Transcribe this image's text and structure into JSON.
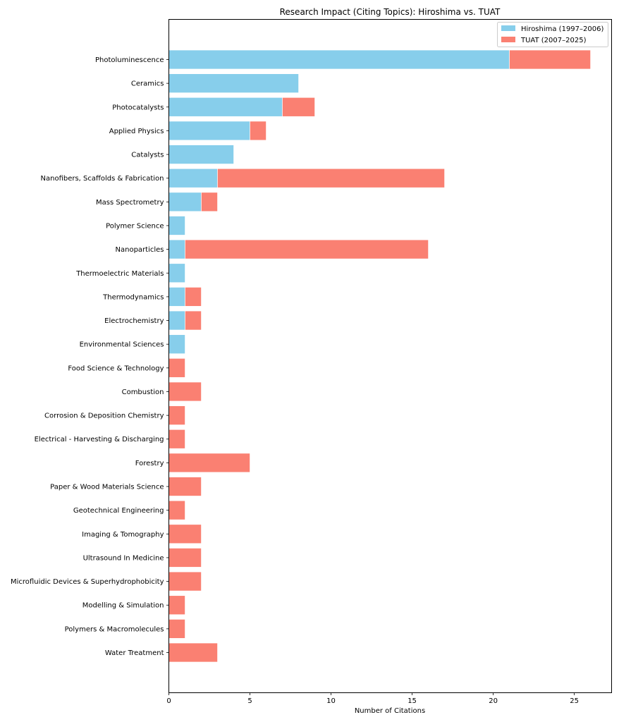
{
  "chart_data": {
    "type": "bar",
    "orientation": "horizontal",
    "stacked": true,
    "title": "Research Impact (Citing Topics): Hiroshima vs. TUAT",
    "xlabel": "Number of Citations",
    "ylabel": "",
    "xlim": [
      0,
      27.3
    ],
    "xticks": [
      0,
      5,
      10,
      15,
      20,
      25
    ],
    "grid": false,
    "legend_position": "top-right",
    "categories": [
      "Photoluminescence",
      "Ceramics",
      "Photocatalysts",
      "Applied Physics",
      "Catalysts",
      "Nanofibers, Scaffolds & Fabrication",
      "Mass Spectrometry",
      "Polymer Science",
      "Nanoparticles",
      "Thermoelectric Materials",
      "Thermodynamics",
      "Electrochemistry",
      "Environmental Sciences",
      "Food Science & Technology",
      "Combustion",
      "Corrosion & Deposition Chemistry",
      "Electrical - Harvesting & Discharging",
      "Forestry",
      "Paper & Wood Materials Science",
      "Geotechnical Engineering",
      "Imaging & Tomography",
      "Ultrasound In Medicine",
      "Microfluidic Devices & Superhydrophobicity",
      "Modelling & Simulation",
      "Polymers & Macromolecules",
      "Water Treatment"
    ],
    "series": [
      {
        "name": "Hiroshima (1997–2006)",
        "color": "#87CEEB",
        "values": [
          21,
          8,
          7,
          5,
          4,
          3,
          2,
          1,
          1,
          1,
          1,
          1,
          1,
          0,
          0,
          0,
          0,
          0,
          0,
          0,
          0,
          0,
          0,
          0,
          0,
          0
        ]
      },
      {
        "name": "TUAT (2007–2025)",
        "color": "#FA8072",
        "values": [
          5,
          0,
          2,
          1,
          0,
          14,
          1,
          0,
          15,
          0,
          1,
          1,
          0,
          1,
          2,
          1,
          1,
          5,
          2,
          1,
          2,
          2,
          2,
          1,
          1,
          3
        ]
      }
    ]
  }
}
